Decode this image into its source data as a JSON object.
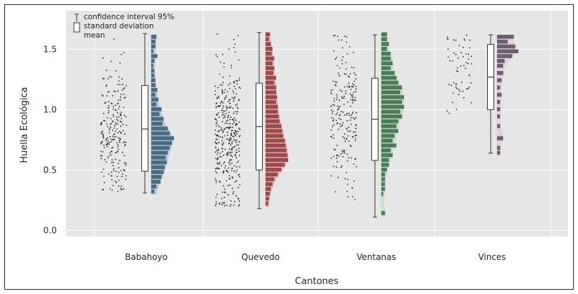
{
  "chart_data": {
    "type": "raincloud",
    "title": "",
    "xlabel": "Cantones",
    "ylabel": "Huella Ecológica",
    "ylim": [
      -0.05,
      1.82
    ],
    "yticks": [
      0.0,
      0.5,
      1.0,
      1.5
    ],
    "grid": true,
    "legend_position": "top-left",
    "legend": [
      {
        "label": "confidence interval 95%",
        "marker": "whisker"
      },
      {
        "label": "standard deviation",
        "marker": "box"
      },
      {
        "label": "mean",
        "marker": "line"
      }
    ],
    "categories": [
      "Babahoyo",
      "Quevedo",
      "Ventanas",
      "Vinces"
    ],
    "series": [
      {
        "category": "Babahoyo",
        "color": "#a9c4dc",
        "bar_color": "#4e6a80",
        "box_low": 0.49,
        "box_high": 1.2,
        "mean": 0.84,
        "whisker_low": 0.31,
        "whisker_high": 1.63,
        "n_points": 230,
        "point_min": 0.32,
        "point_max": 1.62,
        "point_center": 0.82,
        "point_spread": 0.3,
        "hist": [
          [
            1.6,
            5
          ],
          [
            1.56,
            4
          ],
          [
            1.52,
            4
          ],
          [
            1.48,
            2
          ],
          [
            1.44,
            6
          ],
          [
            1.4,
            3
          ],
          [
            1.36,
            2
          ],
          [
            1.32,
            3
          ],
          [
            1.28,
            3
          ],
          [
            1.24,
            4
          ],
          [
            1.2,
            4
          ],
          [
            1.16,
            6
          ],
          [
            1.12,
            4
          ],
          [
            1.08,
            7
          ],
          [
            1.04,
            5
          ],
          [
            1.0,
            10
          ],
          [
            0.96,
            8
          ],
          [
            0.92,
            12
          ],
          [
            0.88,
            11
          ],
          [
            0.84,
            16
          ],
          [
            0.8,
            18
          ],
          [
            0.76,
            22
          ],
          [
            0.72,
            20
          ],
          [
            0.68,
            18
          ],
          [
            0.64,
            16
          ],
          [
            0.6,
            14
          ],
          [
            0.56,
            15
          ],
          [
            0.52,
            13
          ],
          [
            0.48,
            12
          ],
          [
            0.44,
            10
          ],
          [
            0.4,
            9
          ],
          [
            0.36,
            5
          ],
          [
            0.32,
            3
          ]
        ]
      },
      {
        "category": "Quevedo",
        "color": "#e6b4b4",
        "bar_color": "#9a4a4a",
        "box_low": 0.5,
        "box_high": 1.22,
        "mean": 0.86,
        "whisker_low": 0.18,
        "whisker_high": 1.64,
        "n_points": 380,
        "point_min": 0.2,
        "point_max": 1.63,
        "point_center": 0.78,
        "point_spread": 0.3,
        "hist": [
          [
            1.62,
            5
          ],
          [
            1.58,
            4
          ],
          [
            1.54,
            6
          ],
          [
            1.5,
            8
          ],
          [
            1.46,
            7
          ],
          [
            1.42,
            10
          ],
          [
            1.38,
            8
          ],
          [
            1.34,
            10
          ],
          [
            1.3,
            9
          ],
          [
            1.26,
            12
          ],
          [
            1.22,
            10
          ],
          [
            1.18,
            12
          ],
          [
            1.14,
            12
          ],
          [
            1.1,
            13
          ],
          [
            1.06,
            12
          ],
          [
            1.02,
            14
          ],
          [
            0.98,
            14
          ],
          [
            0.94,
            15
          ],
          [
            0.9,
            16
          ],
          [
            0.86,
            18
          ],
          [
            0.82,
            19
          ],
          [
            0.78,
            20
          ],
          [
            0.74,
            22
          ],
          [
            0.7,
            23
          ],
          [
            0.66,
            24
          ],
          [
            0.62,
            25
          ],
          [
            0.58,
            26
          ],
          [
            0.54,
            22
          ],
          [
            0.5,
            18
          ],
          [
            0.46,
            14
          ],
          [
            0.42,
            10
          ],
          [
            0.38,
            8
          ],
          [
            0.34,
            6
          ],
          [
            0.3,
            5
          ],
          [
            0.26,
            4
          ],
          [
            0.22,
            3
          ]
        ]
      },
      {
        "category": "Ventanas",
        "color": "#bfe0bf",
        "bar_color": "#4f7a5a",
        "box_low": 0.58,
        "box_high": 1.26,
        "mean": 0.92,
        "whisker_low": 0.11,
        "whisker_high": 1.62,
        "n_points": 220,
        "point_min": 0.12,
        "point_max": 1.62,
        "point_center": 0.95,
        "point_spread": 0.3,
        "hist": [
          [
            1.62,
            3
          ],
          [
            1.58,
            3
          ],
          [
            1.54,
            4
          ],
          [
            1.5,
            3
          ],
          [
            1.46,
            5
          ],
          [
            1.42,
            5
          ],
          [
            1.38,
            6
          ],
          [
            1.34,
            5
          ],
          [
            1.3,
            7
          ],
          [
            1.26,
            8
          ],
          [
            1.22,
            9
          ],
          [
            1.18,
            11
          ],
          [
            1.14,
            10
          ],
          [
            1.1,
            12
          ],
          [
            1.06,
            11
          ],
          [
            1.02,
            12
          ],
          [
            0.98,
            10
          ],
          [
            0.94,
            11
          ],
          [
            0.9,
            9
          ],
          [
            0.86,
            8
          ],
          [
            0.82,
            9
          ],
          [
            0.78,
            7
          ],
          [
            0.74,
            6
          ],
          [
            0.7,
            8
          ],
          [
            0.66,
            5
          ],
          [
            0.62,
            6
          ],
          [
            0.58,
            4
          ],
          [
            0.54,
            4
          ],
          [
            0.5,
            3
          ],
          [
            0.46,
            2
          ],
          [
            0.42,
            2
          ],
          [
            0.38,
            2
          ],
          [
            0.34,
            2
          ],
          [
            0.3,
            1
          ],
          [
            0.14,
            2
          ]
        ]
      },
      {
        "category": "Vinces",
        "color": "#e8c8e0",
        "bar_color": "#6a5f6a",
        "box_low": 1.0,
        "box_high": 1.54,
        "mean": 1.27,
        "whisker_low": 0.64,
        "whisker_high": 1.62,
        "n_points": 60,
        "point_min": 0.64,
        "point_max": 1.62,
        "point_center": 1.35,
        "point_spread": 0.22,
        "hist": [
          [
            1.6,
            11
          ],
          [
            1.56,
            7
          ],
          [
            1.52,
            12
          ],
          [
            1.48,
            14
          ],
          [
            1.44,
            10
          ],
          [
            1.4,
            5
          ],
          [
            1.36,
            4
          ],
          [
            1.3,
            4
          ],
          [
            1.24,
            3
          ],
          [
            1.18,
            2
          ],
          [
            1.12,
            3
          ],
          [
            1.06,
            2
          ],
          [
            1.0,
            2
          ],
          [
            0.94,
            2
          ],
          [
            0.86,
            2
          ],
          [
            0.76,
            4
          ],
          [
            0.68,
            2
          ],
          [
            0.64,
            2
          ]
        ]
      }
    ]
  }
}
